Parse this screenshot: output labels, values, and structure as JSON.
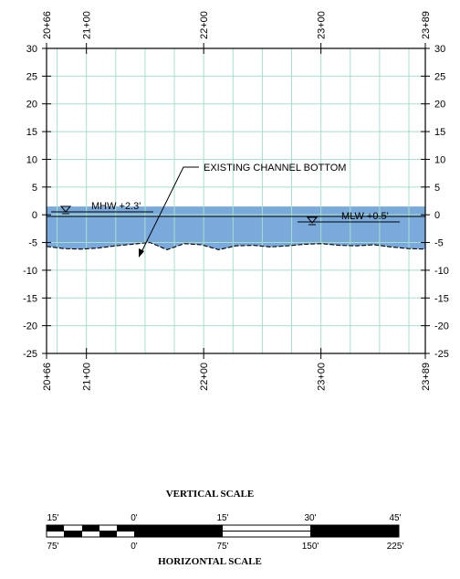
{
  "section": {
    "stations_top": [
      "20+66",
      "21+00",
      "22+00",
      "23+00",
      "23+89"
    ],
    "stations_bottom": [
      "20+66",
      "21+00",
      "22+00",
      "23+00",
      "23+89"
    ],
    "y_ticks_left": [
      "30",
      "25",
      "20",
      "15",
      "10",
      "5",
      "0",
      "-5",
      "-10",
      "-15",
      "-20",
      "-25"
    ],
    "y_ticks_right": [
      "30",
      "25",
      "20",
      "15",
      "10",
      "5",
      "0",
      "-5",
      "-10",
      "-15",
      "-20",
      "-25"
    ],
    "annotation": "EXISTING CHANNEL BOTTOM",
    "mhw_label": "MHW +2.3'",
    "mlw_label": "MLW +0.5'",
    "water_color": "#7aaadc",
    "grid_color": "#a8e0c8",
    "channel_bottom_elevations": [
      -5.7,
      -6.1,
      -6.2,
      -6.0,
      -5.6,
      -5.3,
      -5.0,
      -6.3,
      -5.2,
      -5.4,
      -6.3,
      -5.6,
      -5.5,
      -5.8,
      -5.6,
      -5.3,
      -5.2,
      -5.5,
      -5.6,
      -5.4,
      -5.8,
      -6.1,
      -6.2
    ]
  },
  "vertical_scale": {
    "title": "VERTICAL SCALE",
    "labels": [
      "15'",
      "0'",
      "15'",
      "30'",
      "45'"
    ]
  },
  "horizontal_scale": {
    "title": "HORIZONTAL SCALE",
    "labels": [
      "75'",
      "0'",
      "75'",
      "150'",
      "225'"
    ]
  }
}
